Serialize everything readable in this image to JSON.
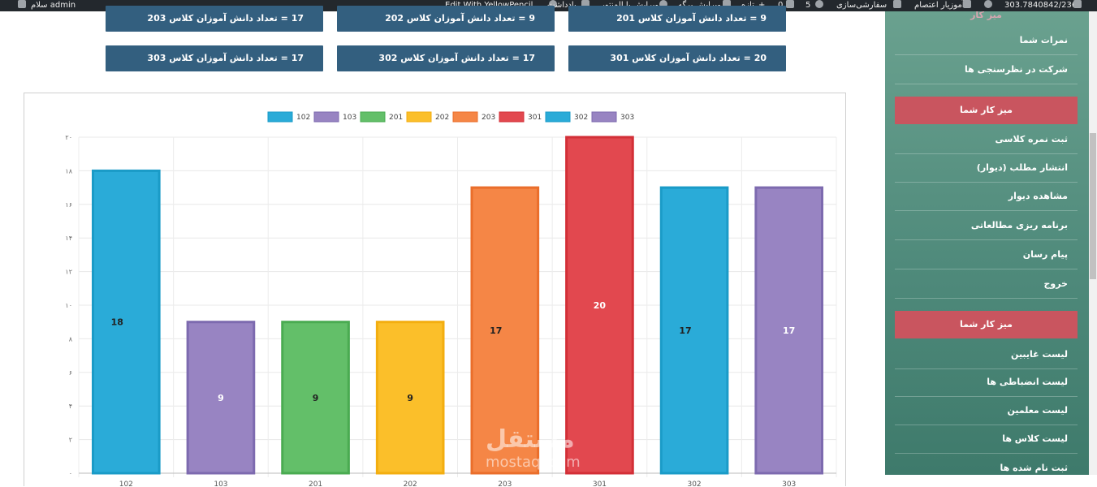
{
  "adminbar": {
    "greeting": "سلام admin",
    "yellowpencil": "Edit With YellowPencil",
    "notes": "یادداشت",
    "elementor": "ویرایش با المنتور",
    "edit_page": "ویرایش برگه",
    "new": "تازه",
    "comments_count": "0",
    "updates_count": "5",
    "customize": "سفارشی‌سازی",
    "school_training": "آموزیار اعتصام",
    "ip": "303.7840842/236"
  },
  "stats": [
    {
      "label": "17 = تعداد دانش آموزان کلاس 203"
    },
    {
      "label": "9 = تعداد دانش آموزان کلاس 202"
    },
    {
      "label": "9 = تعداد دانش آموزان کلاس 201"
    },
    {
      "label": "17 = تعداد دانش آموزان کلاس 303"
    },
    {
      "label": "17 = تعداد دانش آموزان کلاس 302"
    },
    {
      "label": "20 = تعداد دانش آموزان کلاس 301"
    }
  ],
  "chart_data": {
    "type": "bar",
    "categories": [
      "102",
      "103",
      "201",
      "202",
      "203",
      "301",
      "302",
      "303"
    ],
    "values": [
      18,
      9,
      9,
      9,
      17,
      20,
      17,
      17
    ],
    "colors": [
      "#2aabd8",
      "#9884c2",
      "#63bf69",
      "#fbbf2a",
      "#f58646",
      "#e2484f",
      "#2aabd8",
      "#9884c2"
    ],
    "border_colors": [
      "#1a9bc7",
      "#7d6aaf",
      "#4aab51",
      "#f3ae10",
      "#ea6e2b",
      "#d32f37",
      "#1a9bc7",
      "#7d6aaf"
    ],
    "legend": [
      "102",
      "103",
      "201",
      "202",
      "203",
      "301",
      "302",
      "303"
    ],
    "legend_position": "top-center",
    "y_ticks": [
      "۰",
      "۲",
      "۴",
      "۶",
      "۸",
      "۱۰",
      "۱۲",
      "۱۴",
      "۱۶",
      "۱۸",
      "۲۰"
    ],
    "ylim": [
      0,
      20
    ],
    "grid": true,
    "data_labels": [
      "18",
      "9",
      "9",
      "9",
      "17",
      "20",
      "17",
      "17"
    ]
  },
  "sidebar": {
    "top_partial": "میز کار",
    "group1": [
      "نمرات شما",
      "شرکت در نظرسنجی ها"
    ],
    "head2": "میز کار شما",
    "group2": [
      "ثبت نمره کلاسی",
      "انتشار مطلب (دیوار)",
      "مشاهده دیوار",
      "برنامه ریزی مطالعاتی",
      "پیام رسان",
      "خروج"
    ],
    "head3": "میز کار شما",
    "group3": [
      "لیست غایبین",
      "لیست انضباطی ها",
      "لیست معلمین",
      "لیست کلاس ها",
      "ثبت نام شده ها"
    ]
  },
  "watermark": {
    "arabic": "مستقل",
    "latin": "mostaql.com"
  }
}
